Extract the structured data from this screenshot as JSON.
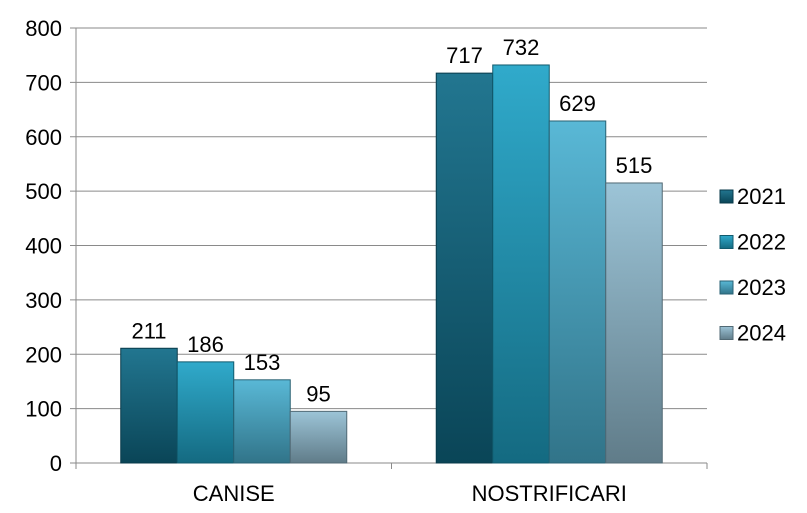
{
  "chart_data": {
    "type": "bar",
    "categories": [
      "CANISE",
      "NOSTRIFICARI"
    ],
    "series": [
      {
        "name": "2021",
        "values": [
          211,
          717
        ],
        "color": "#0f6a86"
      },
      {
        "name": "2022",
        "values": [
          186,
          732
        ],
        "color": "#1ea3c6"
      },
      {
        "name": "2023",
        "values": [
          153,
          629
        ],
        "color": "#4bb2d2"
      },
      {
        "name": "2024",
        "values": [
          95,
          515
        ],
        "color": "#93bfd3"
      }
    ],
    "ylim": [
      0,
      800
    ],
    "yticks": [
      0,
      100,
      200,
      300,
      400,
      500,
      600,
      700,
      800
    ],
    "grid": true,
    "legend_position": "right",
    "data_labels": true,
    "title": "",
    "xlabel": "",
    "ylabel": ""
  }
}
